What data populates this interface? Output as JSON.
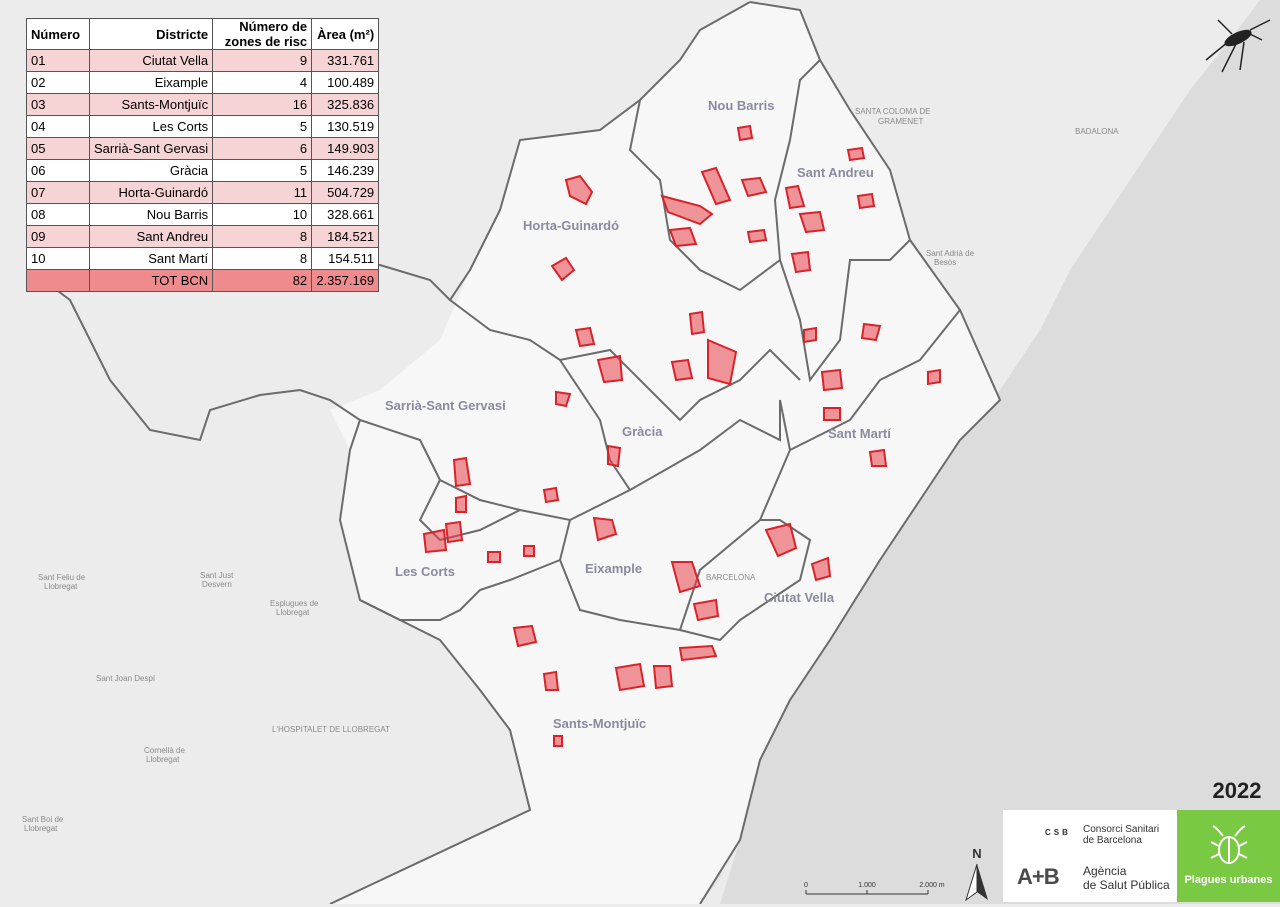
{
  "table": {
    "headers": [
      "Número",
      "Districte",
      "Número de zones de risc",
      "Àrea (m²)"
    ],
    "rows": [
      {
        "num": "01",
        "district": "Ciutat Vella",
        "zones": "9",
        "area": "331.761"
      },
      {
        "num": "02",
        "district": "Eixample",
        "zones": "4",
        "area": "100.489"
      },
      {
        "num": "03",
        "district": "Sants-Montjuïc",
        "zones": "16",
        "area": "325.836"
      },
      {
        "num": "04",
        "district": "Les Corts",
        "zones": "5",
        "area": "130.519"
      },
      {
        "num": "05",
        "district": "Sarrià-Sant Gervasi",
        "zones": "6",
        "area": "149.903"
      },
      {
        "num": "06",
        "district": "Gràcia",
        "zones": "5",
        "area": "146.239"
      },
      {
        "num": "07",
        "district": "Horta-Guinardó",
        "zones": "11",
        "area": "504.729"
      },
      {
        "num": "08",
        "district": "Nou Barris",
        "zones": "10",
        "area": "328.661"
      },
      {
        "num": "09",
        "district": "Sant Andreu",
        "zones": "8",
        "area": "184.521"
      },
      {
        "num": "10",
        "district": "Sant Martí",
        "zones": "8",
        "area": "154.511"
      }
    ],
    "total": {
      "label": "TOT BCN",
      "zones": "82",
      "area": "2.357.169"
    }
  },
  "districts": {
    "nou_barris": "Nou Barris",
    "sant_andreu": "Sant Andreu",
    "horta": "Horta-Guinardó",
    "sarria": "Sarrià-Sant Gervasi",
    "gracia": "Gràcia",
    "sant_marti": "Sant Martí",
    "eixample": "Eixample",
    "les_corts": "Les Corts",
    "ciutat_vella": "Ciutat Vella",
    "sants": "Sants-Montjuïc"
  },
  "places": {
    "santa_coloma": "SANTA COLOMA DE",
    "gramenet": "GRAMENET",
    "badalona": "BADALONA",
    "barcelona": "BARCELONA",
    "hospitalet": "L'HOSPITALET DE LLOBREGAT",
    "sant_feliu": "Sant Feliu de",
    "llobregat1": "Llobregat",
    "sant_just": "Sant Just",
    "desvern": "Desvern",
    "esplugues": "Esplugues de",
    "llobregat2": "Llobregat",
    "sant_joan": "Sant Joan Despí",
    "cornella": "Cornellà de",
    "llobregat3": "Llobregat",
    "sant_boi": "Sant Boi de",
    "llobregat4": "Llobregat",
    "sant_adria": "Sant Adrià de",
    "besos": "Besòs"
  },
  "year": "2022",
  "logos": {
    "csb_mark": "CSB",
    "csb_name_1": "Consorci Sanitari",
    "csb_name_2": "de Barcelona",
    "asp_mark": "A+B",
    "asp_name_1": "Agència",
    "asp_name_2": "de Salut Pública",
    "plagues": "Plagues urbanes"
  },
  "north_label": "N",
  "scale": {
    "t0": "0",
    "t1": "1.000",
    "t2": "2.000 m"
  },
  "colors": {
    "zone_fill": "#e8434a",
    "zone_stroke": "#d8232b",
    "boundary": "#6b6b6b",
    "sea": "#dcdcdc",
    "land": "#ececec",
    "city": "#f7f7f7",
    "logo_green": "#7ac943"
  }
}
